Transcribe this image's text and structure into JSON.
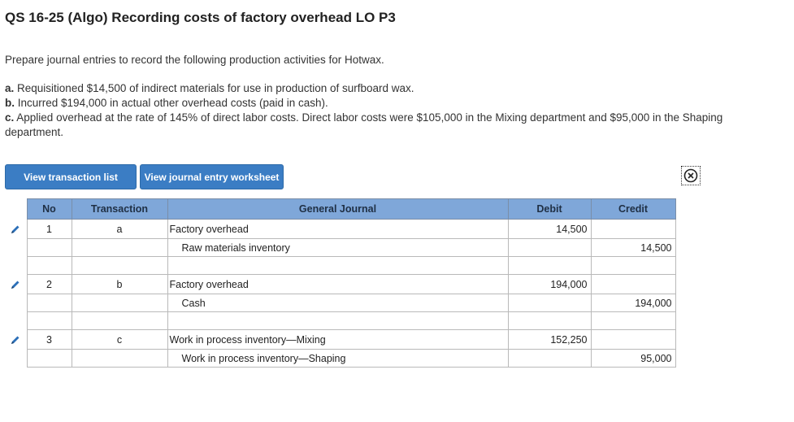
{
  "title": "QS 16-25 (Algo) Recording costs of factory overhead LO P3",
  "prompt": "Prepare journal entries to record the following production activities for Hotwax.",
  "items": [
    {
      "letter": "a.",
      "text": "Requisitioned $14,500 of indirect materials for use in production of surfboard wax."
    },
    {
      "letter": "b.",
      "text": "Incurred $194,000 in actual other overhead costs (paid in cash)."
    },
    {
      "letter": "c.",
      "text": "Applied overhead at the rate of 145% of direct labor costs. Direct labor costs were $105,000 in the Mixing department and $95,000 in the Shaping department."
    }
  ],
  "buttons": {
    "transaction_list": "View transaction list",
    "journal_worksheet": "View journal entry worksheet"
  },
  "table": {
    "headers": {
      "no": "No",
      "transaction": "Transaction",
      "journal": "General Journal",
      "debit": "Debit",
      "credit": "Credit"
    },
    "rows": [
      {
        "no": "1",
        "transaction": "a",
        "account": "Factory overhead",
        "indent": false,
        "debit": "14,500",
        "credit": ""
      },
      {
        "no": "",
        "transaction": "",
        "account": "Raw materials inventory",
        "indent": true,
        "debit": "",
        "credit": "14,500"
      },
      {
        "no": "",
        "transaction": "",
        "account": "",
        "indent": false,
        "debit": "",
        "credit": ""
      },
      {
        "no": "2",
        "transaction": "b",
        "account": "Factory overhead",
        "indent": false,
        "debit": "194,000",
        "credit": ""
      },
      {
        "no": "",
        "transaction": "",
        "account": "Cash",
        "indent": true,
        "debit": "",
        "credit": "194,000"
      },
      {
        "no": "",
        "transaction": "",
        "account": "",
        "indent": false,
        "debit": "",
        "credit": ""
      },
      {
        "no": "3",
        "transaction": "c",
        "account": "Work in process inventory—Mixing",
        "indent": false,
        "debit": "152,250",
        "credit": ""
      },
      {
        "no": "",
        "transaction": "",
        "account": "Work in process inventory—Shaping",
        "indent": true,
        "debit": "",
        "credit": "95,000"
      }
    ]
  },
  "colors": {
    "accent": "#3b7dc4",
    "header": "#7fa7d9"
  }
}
